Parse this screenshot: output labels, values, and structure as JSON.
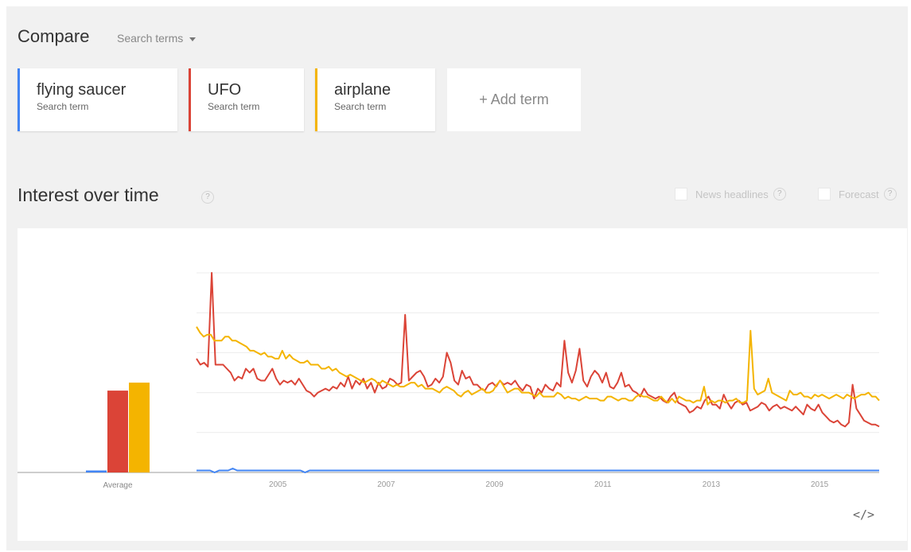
{
  "compare": {
    "title": "Compare",
    "select_label": "Search terms"
  },
  "terms": [
    {
      "name": "flying saucer",
      "sub": "Search term",
      "color": "#4285f4"
    },
    {
      "name": "UFO",
      "sub": "Search term",
      "color": "#db4437"
    },
    {
      "name": "airplane",
      "sub": "Search term",
      "color": "#f4b400"
    }
  ],
  "add_term_label": "+ Add term",
  "interest": {
    "title": "Interest over time",
    "help": "?",
    "options": [
      {
        "label": "News headlines",
        "help": "?"
      },
      {
        "label": "Forecast",
        "help": "?"
      }
    ]
  },
  "embed_label": "</>",
  "chart_data": {
    "type": "line",
    "x_ticks": [
      "2005",
      "2007",
      "2009",
      "2011",
      "2013",
      "2015"
    ],
    "x_range": [
      2004.0,
      2016.6
    ],
    "ylim": [
      0,
      100
    ],
    "average": {
      "label": "Average",
      "values": {
        "flying saucer": 1,
        "UFO": 41,
        "airplane": 45
      }
    },
    "series": [
      {
        "name": "flying saucer",
        "color": "#4285f4",
        "values": [
          1,
          1,
          1,
          1,
          0,
          1,
          1,
          1,
          2,
          1,
          1,
          1,
          1,
          1,
          1,
          1,
          1,
          1,
          1,
          1,
          1,
          1,
          1,
          1,
          0,
          1,
          1,
          1,
          1,
          1,
          1,
          1,
          1,
          1,
          1,
          1,
          1,
          1,
          1,
          1,
          1,
          1,
          1,
          1,
          1,
          1,
          1,
          1,
          1,
          1,
          1,
          1,
          1,
          1,
          1,
          1,
          1,
          1,
          1,
          1,
          1,
          1,
          1,
          1,
          1,
          1,
          1,
          1,
          1,
          1,
          1,
          1,
          1,
          1,
          1,
          1,
          1,
          1,
          1,
          1,
          1,
          1,
          1,
          1,
          1,
          1,
          1,
          1,
          1,
          1,
          1,
          1,
          1,
          1,
          1,
          1,
          1,
          1,
          1,
          1,
          1,
          1,
          1,
          1,
          1,
          1,
          1,
          1,
          1,
          1,
          1,
          1,
          1,
          1,
          1,
          1,
          1,
          1,
          1,
          1,
          1,
          1,
          1,
          1,
          1,
          1,
          1,
          1,
          1,
          1,
          1,
          1,
          1,
          1,
          1,
          1,
          1,
          1,
          1,
          1,
          1,
          1,
          1,
          1,
          1,
          1,
          1,
          1,
          1,
          1,
          1,
          1
        ]
      },
      {
        "name": "UFO",
        "color": "#db4437",
        "values": [
          57,
          54,
          55,
          53,
          100,
          54,
          54,
          54,
          52,
          50,
          46,
          48,
          47,
          52,
          50,
          52,
          47,
          46,
          46,
          49,
          52,
          47,
          44,
          46,
          45,
          46,
          44,
          47,
          44,
          41,
          40,
          38,
          40,
          41,
          42,
          41,
          43,
          42,
          45,
          43,
          48,
          42,
          46,
          44,
          47,
          42,
          45,
          40,
          45,
          42,
          43,
          47,
          46,
          44,
          45,
          79,
          46,
          48,
          50,
          51,
          48,
          43,
          44,
          47,
          45,
          48,
          60,
          55,
          46,
          44,
          51,
          47,
          48,
          44,
          44,
          42,
          41,
          44,
          45,
          43,
          46,
          44,
          45,
          44,
          46,
          43,
          41,
          44,
          43,
          37,
          42,
          40,
          44,
          42,
          41,
          45,
          43,
          66,
          50,
          45,
          51,
          62,
          46,
          43,
          48,
          51,
          49,
          45,
          50,
          43,
          42,
          45,
          50,
          43,
          44,
          41,
          40,
          38,
          42,
          39,
          38,
          37,
          38,
          36,
          35,
          38,
          40,
          35,
          34,
          33,
          30,
          31,
          33,
          32,
          36,
          38,
          34,
          34,
          32,
          39,
          35,
          32,
          35,
          36,
          34,
          35,
          31,
          32,
          33,
          35,
          34,
          31,
          33,
          34,
          32,
          33,
          32,
          31,
          33,
          31,
          29,
          34,
          32,
          31,
          34,
          30,
          28,
          26,
          25,
          26,
          24,
          23,
          25,
          44,
          32,
          29,
          26,
          25,
          24,
          24,
          23
        ]
      },
      {
        "name": "airplane",
        "color": "#f4b400",
        "values": [
          73,
          70,
          68,
          69,
          69,
          66,
          66,
          66,
          68,
          68,
          66,
          66,
          65,
          64,
          63,
          61,
          61,
          60,
          59,
          60,
          58,
          58,
          57,
          57,
          61,
          57,
          59,
          57,
          56,
          55,
          55,
          56,
          54,
          54,
          54,
          52,
          52,
          53,
          51,
          52,
          50,
          49,
          48,
          49,
          48,
          47,
          46,
          45,
          46,
          47,
          46,
          44,
          46,
          45,
          44,
          43,
          44,
          43,
          43,
          44,
          45,
          45,
          43,
          44,
          42,
          42,
          42,
          41,
          40,
          42,
          43,
          42,
          41,
          39,
          38,
          40,
          41,
          39,
          40,
          41,
          42,
          40,
          40,
          41,
          44,
          46,
          43,
          40,
          41,
          42,
          42,
          40,
          40,
          40,
          39,
          38,
          40,
          38,
          38,
          38,
          38,
          40,
          39,
          37,
          38,
          37,
          37,
          36,
          37,
          38,
          37,
          37,
          37,
          36,
          36,
          38,
          38,
          37,
          36,
          37,
          37,
          36,
          36,
          38,
          39,
          38,
          38,
          37,
          36,
          36,
          38,
          36,
          35,
          37,
          35,
          38,
          37,
          36,
          36,
          35,
          36,
          36,
          43,
          34,
          36,
          35,
          36,
          36,
          35,
          36,
          36,
          37,
          35,
          35,
          36,
          71,
          42,
          39,
          40,
          41,
          47,
          40,
          39,
          38,
          37,
          36,
          41,
          39,
          39,
          40,
          38,
          38,
          37,
          39,
          38,
          39,
          38,
          37,
          38,
          39,
          38,
          37,
          39,
          38,
          37,
          38,
          39,
          39,
          40,
          38,
          38,
          36
        ]
      }
    ]
  }
}
